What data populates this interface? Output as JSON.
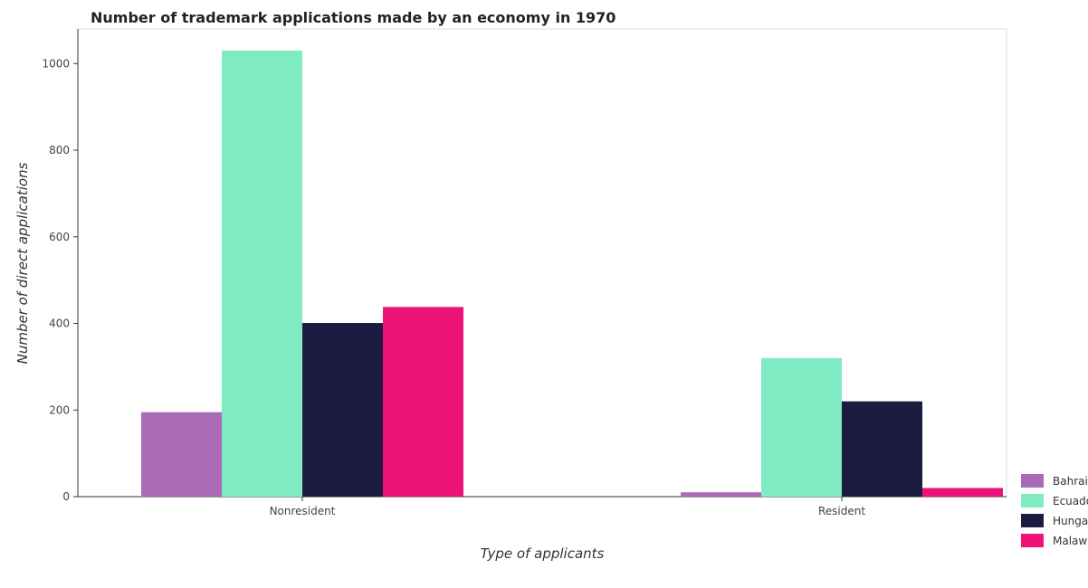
{
  "chart_data": {
    "type": "bar",
    "title": "Number of trademark applications made by an economy in 1970",
    "xlabel": "Type of applicants",
    "ylabel": "Number of direct applications",
    "categories": [
      "Nonresident",
      "Resident"
    ],
    "series": [
      {
        "name": "Bahrain",
        "color": "#a96bb6",
        "values": [
          195,
          10
        ]
      },
      {
        "name": "Ecuador",
        "color": "#7eebc2",
        "values": [
          1030,
          320
        ]
      },
      {
        "name": "Hungary",
        "color": "#1c1c40",
        "values": [
          401,
          220
        ]
      },
      {
        "name": "Malawi",
        "color": "#ed1378",
        "values": [
          438,
          20
        ]
      }
    ],
    "ylim": [
      0,
      1080
    ],
    "yticks": [
      0,
      200,
      400,
      600,
      800,
      1000
    ],
    "grid": false,
    "legend": "bottom-right"
  }
}
